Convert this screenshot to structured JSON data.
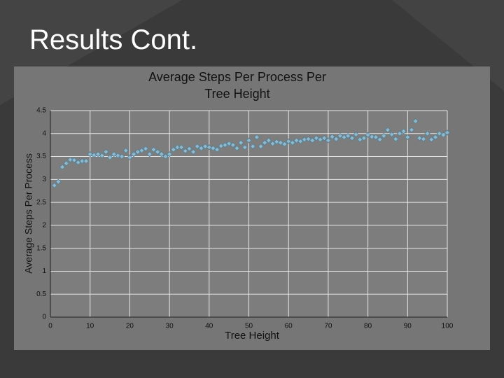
{
  "slide": {
    "title": "Results Cont."
  },
  "chart_data": {
    "type": "scatter",
    "title": "Average Steps Per Process Per Tree Height",
    "x_label": "Tree Height",
    "y_label": "Average Steps Per Process",
    "series": [
      {
        "name": "Average Steps Per Process",
        "color": "#8fb8cc",
        "x": [
          1,
          2,
          3,
          4,
          5,
          6,
          7,
          8,
          9,
          10,
          11,
          12,
          13,
          14,
          15,
          16,
          17,
          18,
          19,
          20,
          21,
          22,
          23,
          24,
          25,
          26,
          27,
          28,
          29,
          30,
          31,
          32,
          33,
          34,
          35,
          36,
          37,
          38,
          39,
          40,
          41,
          42,
          43,
          44,
          45,
          46,
          47,
          48,
          49,
          50,
          51,
          52,
          53,
          54,
          55,
          56,
          57,
          58,
          59,
          60,
          61,
          62,
          63,
          64,
          65,
          66,
          67,
          68,
          69,
          70,
          71,
          72,
          73,
          74,
          75,
          76,
          77,
          78,
          79,
          80,
          81,
          82,
          83,
          84,
          85,
          86,
          87,
          88,
          89,
          90,
          91,
          92,
          93,
          94,
          95,
          96,
          97,
          98,
          99,
          100
        ],
        "values": [
          2.87,
          2.95,
          3.27,
          3.35,
          3.43,
          3.42,
          3.37,
          3.4,
          3.4,
          3.55,
          3.53,
          3.55,
          3.52,
          3.6,
          3.48,
          3.55,
          3.52,
          3.5,
          3.63,
          3.48,
          3.55,
          3.6,
          3.63,
          3.67,
          3.55,
          3.65,
          3.6,
          3.55,
          3.5,
          3.55,
          3.65,
          3.7,
          3.7,
          3.62,
          3.67,
          3.6,
          3.72,
          3.68,
          3.72,
          3.7,
          3.68,
          3.65,
          3.73,
          3.75,
          3.78,
          3.75,
          3.68,
          3.8,
          3.7,
          3.85,
          3.72,
          3.92,
          3.72,
          3.8,
          3.85,
          3.78,
          3.82,
          3.8,
          3.77,
          3.83,
          3.8,
          3.85,
          3.83,
          3.87,
          3.88,
          3.85,
          3.9,
          3.87,
          3.9,
          3.85,
          3.93,
          3.88,
          3.95,
          3.92,
          3.95,
          3.9,
          3.98,
          3.87,
          3.9,
          3.97,
          3.93,
          3.92,
          3.87,
          3.95,
          4.08,
          3.98,
          3.88,
          4.0,
          4.05,
          3.92,
          4.08,
          4.27,
          3.9,
          3.88,
          4.0,
          3.87,
          3.92,
          4.0,
          3.97,
          4.02
        ]
      }
    ],
    "xlim": [
      0,
      100
    ],
    "xticks": [
      0,
      10,
      20,
      30,
      40,
      50,
      60,
      70,
      80,
      90,
      100
    ],
    "ylim": [
      0,
      4.5
    ],
    "yticks": [
      0,
      0.5,
      1,
      1.5,
      2,
      2.5,
      3,
      3.5,
      4,
      4.5
    ],
    "grid": true
  }
}
